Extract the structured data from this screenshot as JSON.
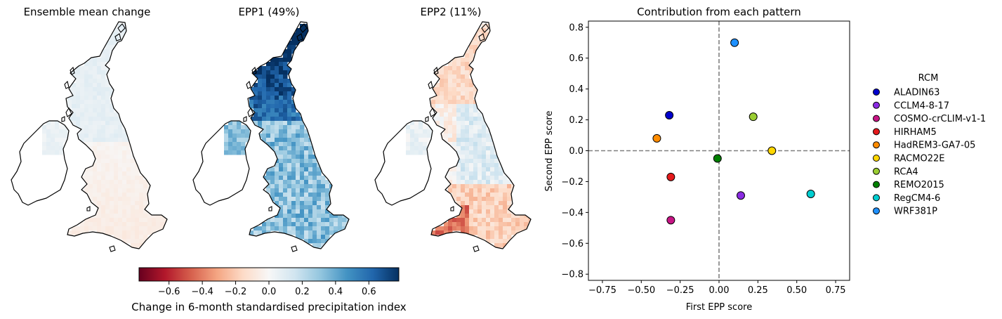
{
  "maps": [
    {
      "title": "Ensemble mean change",
      "style": "mean"
    },
    {
      "title": "EPP1 (49%)",
      "style": "epp1"
    },
    {
      "title": "EPP2 (11%)",
      "style": "epp2"
    }
  ],
  "colorbar": {
    "label": "Change in 6-month standardised precipitation index",
    "ticks": [
      "−0.6",
      "−0.4",
      "−0.2",
      "0.0",
      "0.2",
      "0.4",
      "0.6"
    ],
    "range": [
      -0.78,
      0.78
    ],
    "colormap": [
      "#67001f",
      "#b2182b",
      "#d6604d",
      "#f4a582",
      "#fddbc7",
      "#f7f7f7",
      "#d1e5f0",
      "#92c5de",
      "#4393c3",
      "#2166ac",
      "#053061"
    ]
  },
  "chart_data": {
    "type": "scatter",
    "title": "Contribution from each pattern",
    "xlabel": "First EPP score",
    "ylabel": "Second EPP score",
    "xlim": [
      -0.84,
      0.84
    ],
    "ylim": [
      -0.84,
      0.84
    ],
    "xticks": [
      "−0.75",
      "−0.50",
      "−0.25",
      "0.00",
      "0.25",
      "0.50",
      "0.75"
    ],
    "yticks": [
      "−0.8",
      "−0.6",
      "−0.4",
      "−0.2",
      "0.0",
      "0.2",
      "0.4",
      "0.6",
      "0.8"
    ],
    "grid": false,
    "reference_lines": "dashed lines at x=0 and y=0",
    "legend_title": "RCM",
    "legend_position": "right, outside plot",
    "series": [
      {
        "name": "ALADIN63",
        "color": "#0000cd",
        "x": -0.32,
        "y": 0.23
      },
      {
        "name": "CCLM4-8-17",
        "color": "#8a2be2",
        "x": 0.14,
        "y": -0.29
      },
      {
        "name": "COSMO-crCLIM-v1-1",
        "color": "#c71585",
        "x": -0.31,
        "y": -0.45
      },
      {
        "name": "HIRHAM5",
        "color": "#e41a1c",
        "x": -0.31,
        "y": -0.17
      },
      {
        "name": "HadREM3-GA7-05",
        "color": "#ff8c00",
        "x": -0.4,
        "y": 0.08
      },
      {
        "name": "RACMO22E",
        "color": "#ffd700",
        "x": 0.34,
        "y": 0.0
      },
      {
        "name": "RCA4",
        "color": "#9acd32",
        "x": 0.22,
        "y": 0.22
      },
      {
        "name": "REMO2015",
        "color": "#008000",
        "x": -0.01,
        "y": -0.05
      },
      {
        "name": "RegCM4-6",
        "color": "#00ced1",
        "x": 0.59,
        "y": -0.28
      },
      {
        "name": "WRF381P",
        "color": "#1e90ff",
        "x": 0.1,
        "y": 0.7
      }
    ]
  }
}
